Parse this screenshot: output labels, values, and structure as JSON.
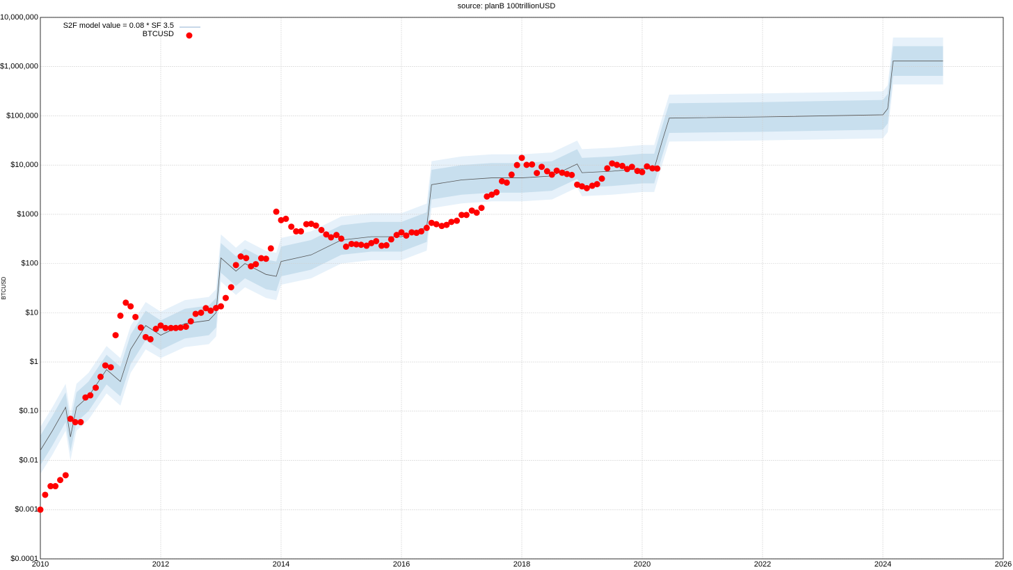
{
  "chart_data": {
    "type": "scatter",
    "title": "source: planB 100trillionUSD",
    "y_label": "BTCUSD",
    "log_y": true,
    "grid": true,
    "legend": "top-left",
    "xlim": [
      2010,
      2026
    ],
    "xticks": [
      2010,
      2012,
      2014,
      2016,
      2018,
      2020,
      2022,
      2024,
      2026
    ],
    "ylim": [
      0.0001,
      10000000
    ],
    "yticks": [
      {
        "value": 0.0001,
        "label": "$0.0001"
      },
      {
        "value": 0.001,
        "label": "$0.001"
      },
      {
        "value": 0.01,
        "label": "$0.01"
      },
      {
        "value": 0.1,
        "label": "$0.10"
      },
      {
        "value": 1,
        "label": "$1"
      },
      {
        "value": 10,
        "label": "$10"
      },
      {
        "value": 100,
        "label": "$100"
      },
      {
        "value": 1000,
        "label": "$1000"
      },
      {
        "value": 10000,
        "label": "$10,000"
      },
      {
        "value": 100000,
        "label": "$100,000"
      },
      {
        "value": 1000000,
        "label": "$1,000,000"
      },
      {
        "value": 10000000,
        "label": "$10,000,000"
      }
    ],
    "series": [
      {
        "name": "S2F model value = 0.08 * SF   3.5",
        "type": "line",
        "color": "#555555",
        "x": [
          2010.0,
          2010.2,
          2010.42,
          2010.5,
          2010.6,
          2010.8,
          2011.1,
          2011.33,
          2011.5,
          2011.75,
          2012.0,
          2012.4,
          2012.8,
          2012.92,
          2013.0,
          2013.25,
          2013.4,
          2013.75,
          2013.92,
          2014.0,
          2014.5,
          2015.0,
          2015.5,
          2016.0,
          2016.42,
          2016.5,
          2017.0,
          2017.5,
          2018.0,
          2018.5,
          2018.92,
          2019.0,
          2019.5,
          2020.0,
          2020.2,
          2020.33,
          2020.45,
          2022.0,
          2024.0,
          2024.08,
          2024.17,
          2025.0
        ],
        "values": [
          0.016,
          0.04,
          0.12,
          0.03,
          0.12,
          0.2,
          0.7,
          0.4,
          1.8,
          5.5,
          3.5,
          6,
          7,
          10,
          130,
          70,
          100,
          60,
          55,
          110,
          150,
          300,
          350,
          350,
          550,
          4000,
          5000,
          5500,
          5500,
          6000,
          10500,
          7000,
          7500,
          8500,
          8500,
          30000,
          90000,
          95000,
          105000,
          140000,
          1300000,
          1300000
        ]
      },
      {
        "name": "BTCUSD",
        "type": "scatter",
        "color": "#ff0000",
        "x": [
          2010.0,
          2010.08,
          2010.17,
          2010.25,
          2010.33,
          2010.42,
          2010.5,
          2010.58,
          2010.67,
          2010.75,
          2010.83,
          2010.92,
          2011.0,
          2011.08,
          2011.17,
          2011.25,
          2011.33,
          2011.42,
          2011.5,
          2011.58,
          2011.67,
          2011.75,
          2011.83,
          2011.92,
          2012.0,
          2012.08,
          2012.17,
          2012.25,
          2012.33,
          2012.42,
          2012.5,
          2012.58,
          2012.67,
          2012.75,
          2012.83,
          2012.92,
          2013.0,
          2013.08,
          2013.17,
          2013.25,
          2013.33,
          2013.42,
          2013.5,
          2013.58,
          2013.67,
          2013.75,
          2013.83,
          2013.92,
          2014.0,
          2014.08,
          2014.17,
          2014.25,
          2014.33,
          2014.42,
          2014.5,
          2014.58,
          2014.67,
          2014.75,
          2014.83,
          2014.92,
          2015.0,
          2015.08,
          2015.17,
          2015.25,
          2015.33,
          2015.42,
          2015.5,
          2015.58,
          2015.67,
          2015.75,
          2015.83,
          2015.92,
          2016.0,
          2016.08,
          2016.17,
          2016.25,
          2016.33,
          2016.42,
          2016.5,
          2016.58,
          2016.67,
          2016.75,
          2016.83,
          2016.92,
          2017.0,
          2017.08,
          2017.17,
          2017.25,
          2017.33,
          2017.42,
          2017.5,
          2017.58,
          2017.67,
          2017.75,
          2017.83,
          2017.92,
          2018.0,
          2018.08,
          2018.17,
          2018.25,
          2018.33,
          2018.42,
          2018.5,
          2018.58,
          2018.67,
          2018.75,
          2018.83,
          2018.92,
          2019.0,
          2019.08,
          2019.17,
          2019.25,
          2019.33,
          2019.42,
          2019.5,
          2019.58,
          2019.67,
          2019.75,
          2019.83,
          2019.92,
          2020.0,
          2020.08,
          2020.17,
          2020.25
        ],
        "values": [
          0.001,
          0.002,
          0.003,
          0.003,
          0.004,
          0.005,
          0.07,
          0.06,
          0.06,
          0.19,
          0.21,
          0.3,
          0.5,
          0.85,
          0.78,
          3.5,
          8.7,
          16,
          13.5,
          8.2,
          5.0,
          3.2,
          2.9,
          4.7,
          5.5,
          4.9,
          4.9,
          4.9,
          5.0,
          5.2,
          6.7,
          9.5,
          10,
          12.4,
          11,
          12.5,
          13.5,
          20,
          33,
          93,
          139,
          129,
          88,
          97,
          128,
          125,
          203,
          1130,
          760,
          810,
          560,
          450,
          450,
          630,
          640,
          590,
          480,
          390,
          340,
          380,
          320,
          220,
          250,
          245,
          240,
          230,
          260,
          285,
          230,
          235,
          310,
          380,
          430,
          370,
          430,
          420,
          450,
          530,
          670,
          630,
          580,
          610,
          700,
          740,
          970,
          970,
          1190,
          1080,
          1350,
          2300,
          2500,
          2800,
          4700,
          4400,
          6400,
          10000,
          14000,
          10100,
          10300,
          6900,
          9200,
          7500,
          6400,
          7700,
          7000,
          6600,
          6300,
          4000,
          3700,
          3400,
          3800,
          4100,
          5300,
          8600,
          10800,
          10100,
          9600,
          8300,
          9200,
          7600,
          7200,
          9400,
          8600,
          8500
        ]
      }
    ],
    "bands": [
      {
        "color": "#e6f1fa",
        "low": [
          0.0053,
          0.013,
          0.04,
          0.01,
          0.04,
          0.067,
          0.23,
          0.13,
          0.6,
          1.8,
          1.2,
          2,
          2.3,
          3.3,
          43,
          23,
          33,
          20,
          18,
          37,
          50,
          100,
          117,
          117,
          183,
          1333,
          1667,
          1833,
          1833,
          2000,
          3500,
          2333,
          2500,
          2833,
          2833,
          10000,
          30000,
          31667,
          35000,
          46667,
          433333,
          433333
        ],
        "high": [
          0.048,
          0.12,
          0.36,
          0.09,
          0.36,
          0.6,
          2.1,
          1.2,
          5.4,
          16.5,
          10.5,
          18,
          21,
          30,
          390,
          210,
          300,
          180,
          165,
          330,
          450,
          900,
          1050,
          1050,
          1650,
          12000,
          15000,
          16500,
          16500,
          18000,
          31500,
          21000,
          22500,
          25500,
          25500,
          90000,
          270000,
          285000,
          315000,
          420000,
          3900000,
          3900000
        ]
      },
      {
        "color": "#c8dfee",
        "low": [
          0.008,
          0.02,
          0.06,
          0.015,
          0.06,
          0.1,
          0.35,
          0.2,
          0.9,
          2.75,
          1.75,
          3,
          3.5,
          5,
          65,
          35,
          50,
          30,
          27.5,
          55,
          75,
          150,
          175,
          175,
          275,
          2000,
          2500,
          2750,
          2750,
          3000,
          5250,
          3500,
          3750,
          4250,
          4250,
          15000,
          45000,
          47500,
          52500,
          70000,
          650000,
          650000
        ],
        "high": [
          0.032,
          0.08,
          0.24,
          0.06,
          0.24,
          0.4,
          1.4,
          0.8,
          3.6,
          11,
          7,
          12,
          14,
          20,
          260,
          140,
          200,
          120,
          110,
          220,
          300,
          600,
          700,
          700,
          1100,
          8000,
          10000,
          11000,
          11000,
          12000,
          21000,
          14000,
          15000,
          17000,
          17000,
          60000,
          180000,
          190000,
          210000,
          280000,
          2600000,
          2600000
        ]
      }
    ]
  }
}
